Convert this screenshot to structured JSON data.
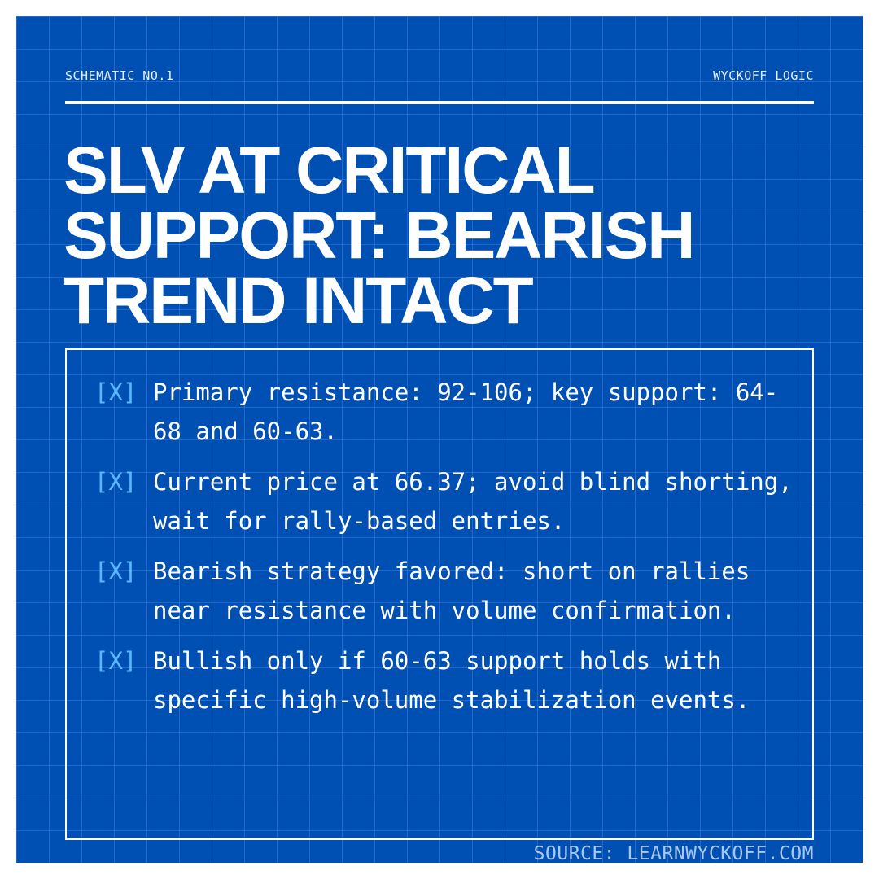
{
  "header": {
    "left": "SCHEMATIC NO.1",
    "right": "WYCKOFF LOGIC"
  },
  "title": "SLV AT CRITICAL SUPPORT: BEARISH TREND INTACT",
  "bullet_marker": "[X]",
  "items": [
    {
      "text": "Primary resistance: 92-106; key support: 64-68 and 60-63."
    },
    {
      "text": "Current price at 66.37; avoid blind shorting, wait for rally-based entries."
    },
    {
      "text": "Bearish strategy favored: short on rallies near resistance with volume confirmation."
    },
    {
      "text": "Bullish only if 60-63 support holds with specific high-volume stabilization events."
    }
  ],
  "footer": {
    "source": "SOURCE: LEARNWYCKOFF.COM"
  },
  "colors": {
    "background": "#0050b4",
    "accent": "#5ab8ff",
    "text": "#ffffff"
  }
}
